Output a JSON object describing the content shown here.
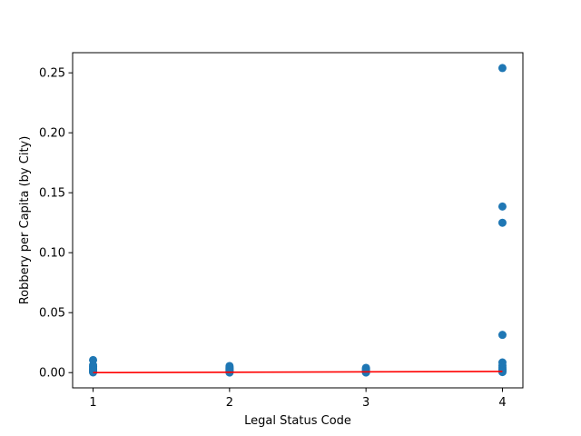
{
  "chart_data": {
    "type": "scatter",
    "title": "",
    "xlabel": "Legal Status Code",
    "ylabel": "Robbery per Capita (by City)",
    "xlim": [
      0.85,
      4.15
    ],
    "ylim": [
      -0.0127,
      0.2668
    ],
    "xticks": [
      1,
      2,
      3,
      4
    ],
    "xtick_labels": [
      "1",
      "2",
      "3",
      "4"
    ],
    "yticks": [
      0.0,
      0.05,
      0.1,
      0.15,
      0.2,
      0.25
    ],
    "ytick_labels": [
      "0.00",
      "0.05",
      "0.10",
      "0.15",
      "0.20",
      "0.25"
    ],
    "grid": false,
    "legend": "none",
    "series": [
      {
        "kind": "scatter",
        "color": "#1f77b4",
        "points": [
          {
            "x": 1,
            "y": 0.0105
          },
          {
            "x": 1,
            "y": 0.0062
          },
          {
            "x": 1,
            "y": 0.005
          },
          {
            "x": 1,
            "y": 0.004
          },
          {
            "x": 1,
            "y": 0.003
          },
          {
            "x": 1,
            "y": 0.0022
          },
          {
            "x": 1,
            "y": 0.0015
          },
          {
            "x": 1,
            "y": 0.001
          },
          {
            "x": 1,
            "y": 0.0006
          },
          {
            "x": 1,
            "y": 0.0002
          },
          {
            "x": 2,
            "y": 0.0055
          },
          {
            "x": 2,
            "y": 0.0045
          },
          {
            "x": 2,
            "y": 0.0035
          },
          {
            "x": 2,
            "y": 0.0028
          },
          {
            "x": 2,
            "y": 0.002
          },
          {
            "x": 2,
            "y": 0.0012
          },
          {
            "x": 2,
            "y": 0.0006
          },
          {
            "x": 2,
            "y": 0.0001
          },
          {
            "x": 3,
            "y": 0.004
          },
          {
            "x": 3,
            "y": 0.0032
          },
          {
            "x": 3,
            "y": 0.0025
          },
          {
            "x": 3,
            "y": 0.0018
          },
          {
            "x": 3,
            "y": 0.001
          },
          {
            "x": 3,
            "y": 0.0004
          },
          {
            "x": 3,
            "y": 0.0001
          },
          {
            "x": 4,
            "y": 0.254
          },
          {
            "x": 4,
            "y": 0.1385
          },
          {
            "x": 4,
            "y": 0.125
          },
          {
            "x": 4,
            "y": 0.0315
          },
          {
            "x": 4,
            "y": 0.0085
          },
          {
            "x": 4,
            "y": 0.006
          },
          {
            "x": 4,
            "y": 0.0042
          },
          {
            "x": 4,
            "y": 0.003
          },
          {
            "x": 4,
            "y": 0.002
          },
          {
            "x": 4,
            "y": 0.0012
          },
          {
            "x": 4,
            "y": 0.0005
          }
        ]
      },
      {
        "kind": "line",
        "color": "#ff0000",
        "x": [
          1,
          4
        ],
        "y": [
          0.0,
          0.001
        ]
      }
    ]
  }
}
